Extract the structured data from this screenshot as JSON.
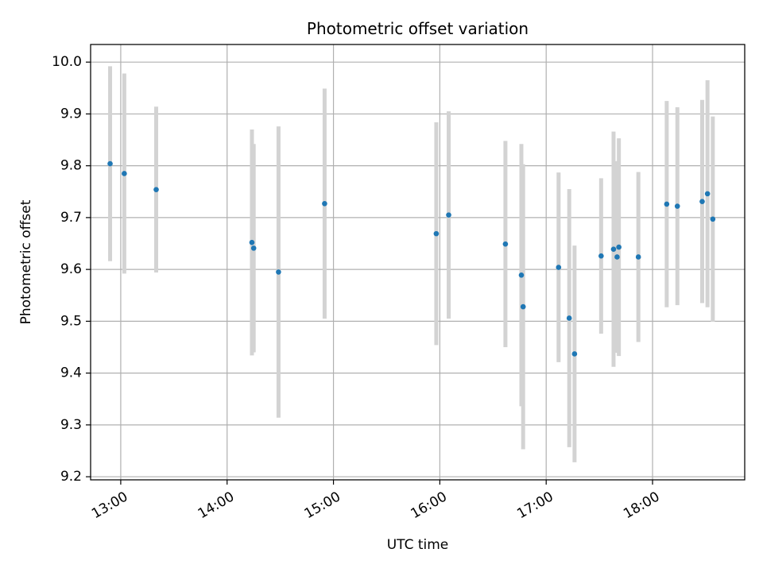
{
  "chart_data": {
    "type": "scatter",
    "title": "Photometric offset variation",
    "xlabel": "UTC time",
    "ylabel": "Photometric offset",
    "grid": true,
    "x_ticks": [
      {
        "t": "13:00",
        "label": "13:00"
      },
      {
        "t": "14:00",
        "label": "14:00"
      },
      {
        "t": "15:00",
        "label": "15:00"
      },
      {
        "t": "16:00",
        "label": "16:00"
      },
      {
        "t": "17:00",
        "label": "17:00"
      },
      {
        "t": "18:00",
        "label": "18:00"
      }
    ],
    "xlim": [
      "12:43",
      "18:52"
    ],
    "y_ticks": [
      9.2,
      9.3,
      9.4,
      9.5,
      9.6,
      9.7,
      9.8,
      9.9,
      10.0
    ],
    "ylim": [
      9.194,
      10.034
    ],
    "colors": {
      "points": "#1f77b4",
      "errorbars": "#d3d3d3",
      "grid": "#b0b0b0"
    },
    "points": [
      {
        "t": "12:54",
        "y": 9.804,
        "yerr": 0.188
      },
      {
        "t": "13:02",
        "y": 9.785,
        "yerr": 0.193
      },
      {
        "t": "13:20",
        "y": 9.754,
        "yerr": 0.16
      },
      {
        "t": "14:14",
        "y": 9.652,
        "yerr": 0.218
      },
      {
        "t": "14:15",
        "y": 9.641,
        "yerr": 0.201
      },
      {
        "t": "14:29",
        "y": 9.595,
        "yerr": 0.281
      },
      {
        "t": "14:55",
        "y": 9.727,
        "yerr": 0.222
      },
      {
        "t": "15:58",
        "y": 9.669,
        "yerr": 0.215
      },
      {
        "t": "16:05",
        "y": 9.705,
        "yerr": 0.2
      },
      {
        "t": "16:37",
        "y": 9.649,
        "yerr": 0.199
      },
      {
        "t": "16:46",
        "y": 9.589,
        "yerr": 0.253
      },
      {
        "t": "16:47",
        "y": 9.528,
        "yerr": 0.275
      },
      {
        "t": "17:07",
        "y": 9.604,
        "yerr": 0.183
      },
      {
        "t": "17:13",
        "y": 9.506,
        "yerr": 0.249
      },
      {
        "t": "17:16",
        "y": 9.437,
        "yerr": 0.209
      },
      {
        "t": "17:31",
        "y": 9.626,
        "yerr": 0.15
      },
      {
        "t": "17:38",
        "y": 9.639,
        "yerr": 0.227
      },
      {
        "t": "17:40",
        "y": 9.624,
        "yerr": 0.185
      },
      {
        "t": "17:41",
        "y": 9.643,
        "yerr": 0.21
      },
      {
        "t": "17:52",
        "y": 9.624,
        "yerr": 0.164
      },
      {
        "t": "18:08",
        "y": 9.726,
        "yerr": 0.199
      },
      {
        "t": "18:14",
        "y": 9.722,
        "yerr": 0.191
      },
      {
        "t": "18:28",
        "y": 9.731,
        "yerr": 0.196
      },
      {
        "t": "18:31",
        "y": 9.746,
        "yerr": 0.219
      },
      {
        "t": "18:34",
        "y": 9.697,
        "yerr": 0.198
      }
    ]
  }
}
